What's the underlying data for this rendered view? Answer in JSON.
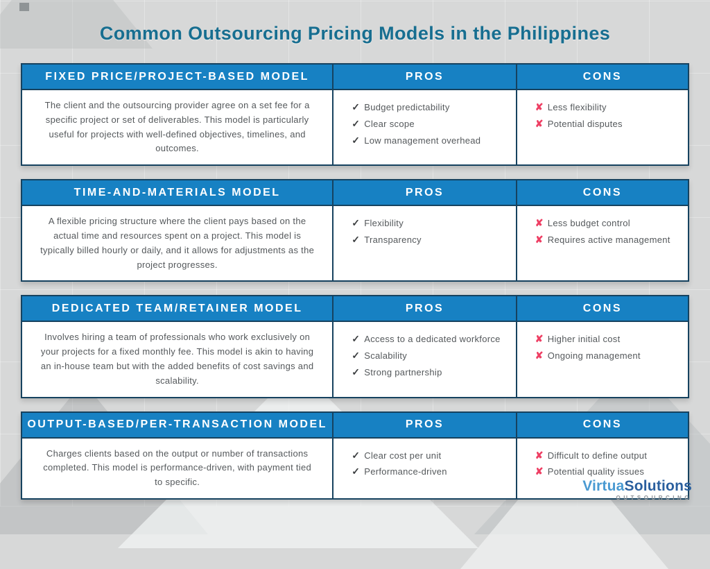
{
  "page": {
    "title": "Common Outsourcing Pricing Models in the Philippines"
  },
  "column_headers": {
    "pros": "PROS",
    "cons": "CONS"
  },
  "icons": {
    "pro_check": "✓",
    "con_x": "✘"
  },
  "colors": {
    "header_blue": "#1781c3",
    "border_navy": "#16425f",
    "title_teal": "#176e90",
    "con_pink": "#ee3e63",
    "check_dark": "#3b3e40",
    "background_gray": "#d7d8d8"
  },
  "tables": [
    {
      "model": "FIXED PRICE/PROJECT-BASED MODEL",
      "description": "The client and the outsourcing provider agree on a set fee for a specific project or set of deliverables. This model is particularly useful for projects with well-defined objectives, timelines, and outcomes.",
      "pros": [
        "Budget predictability",
        "Clear scope",
        "Low management overhead"
      ],
      "cons": [
        "Less flexibility",
        "Potential disputes"
      ]
    },
    {
      "model": "TIME-AND-MATERIALS MODEL",
      "description": "A flexible pricing structure where the client pays based on the actual time and resources spent on a project. This model is typically billed hourly or daily, and it allows for adjustments as the project progresses.",
      "pros": [
        "Flexibility",
        "Transparency"
      ],
      "cons": [
        "Less budget control",
        "Requires active management"
      ]
    },
    {
      "model": "DEDICATED TEAM/RETAINER MODEL",
      "description": "Involves hiring a team of professionals who work exclusively on your projects for a fixed monthly fee. This model is akin to having an in-house team but with the added benefits of cost savings and scalability.",
      "pros": [
        "Access to a dedicated workforce",
        "Scalability",
        "Strong partnership"
      ],
      "cons": [
        "Higher initial cost",
        "Ongoing management"
      ]
    },
    {
      "model": "OUTPUT-BASED/PER-TRANSACTION MODEL",
      "description": "Charges clients based on the output or number of transactions completed. This model is performance-driven, with payment tied to specific.",
      "pros": [
        "Clear cost per unit",
        "Performance-driven"
      ],
      "cons": [
        "Difficult to define output",
        "Potential quality issues"
      ]
    }
  ],
  "logo": {
    "name_part1": "Virtua",
    "name_part2": "Solutions",
    "tagline": "OUTSOURCING"
  }
}
